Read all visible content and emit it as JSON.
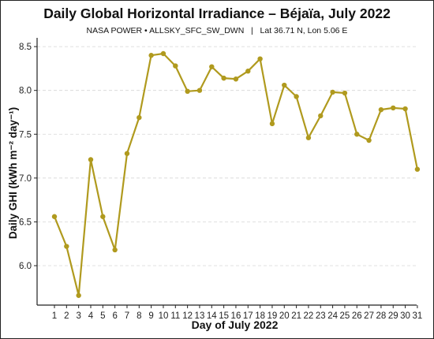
{
  "chart_data": {
    "type": "line",
    "title": "Daily Global Horizontal Irradiance – Béjaïa, July 2022",
    "subtitle": "NASA POWER • ALLSKY_SFC_SW_DWN   |   Lat 36.71 N, Lon 5.06 E",
    "xlabel": "Day of July 2022",
    "ylabel": "Daily GHI (kWh m⁻² day⁻¹)",
    "categories": [
      "1",
      "2",
      "3",
      "4",
      "5",
      "6",
      "7",
      "8",
      "9",
      "10",
      "11",
      "12",
      "13",
      "14",
      "15",
      "16",
      "17",
      "18",
      "19",
      "20",
      "21",
      "22",
      "23",
      "24",
      "25",
      "26",
      "27",
      "28",
      "29",
      "30",
      "31"
    ],
    "series": [
      {
        "values": [
          6.56,
          6.22,
          5.66,
          7.21,
          6.56,
          6.18,
          7.28,
          7.69,
          8.4,
          8.42,
          8.28,
          7.99,
          8.0,
          8.27,
          8.14,
          8.13,
          8.22,
          8.36,
          7.62,
          8.06,
          7.93,
          7.46,
          7.71,
          7.98,
          7.97,
          7.5,
          7.43,
          7.78,
          7.8,
          7.79,
          7.1
        ]
      }
    ],
    "yticks": [
      "6.0",
      "6.5",
      "7.0",
      "7.5",
      "8.0",
      "8.5"
    ],
    "ylim": [
      5.55,
      8.6
    ],
    "grid": "horizontal dashed",
    "colors": {
      "line": "#b09a1e",
      "grid": "#d6d6d6",
      "axis": "#222222"
    }
  }
}
